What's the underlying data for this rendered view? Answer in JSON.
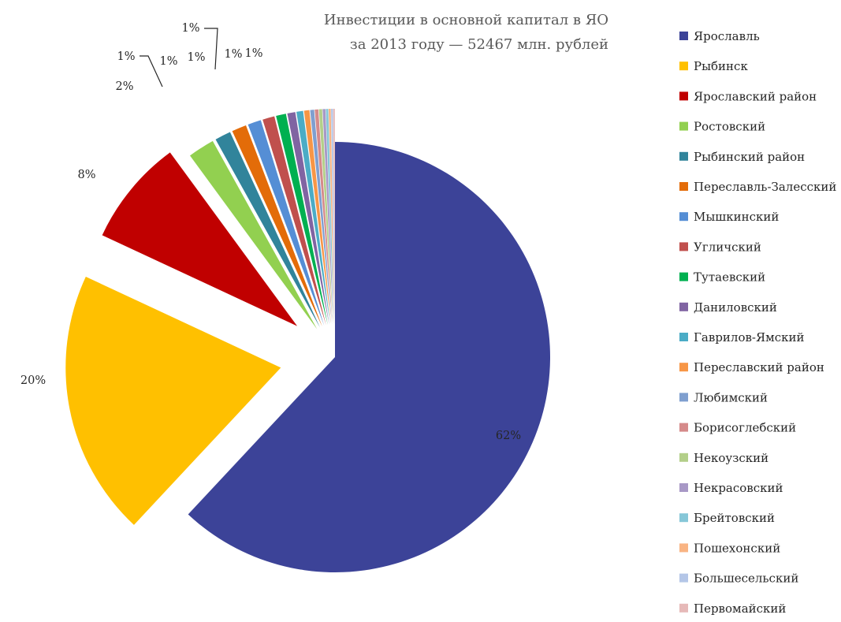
{
  "chart_data": {
    "type": "pie",
    "title": "Инвестиции в основной капитал в ЯО",
    "subtitle": "за 2013 году — 52467 млн. рублей",
    "legend_position": "right",
    "slices": [
      {
        "name": "Ярославль",
        "value": 62,
        "label": "62%",
        "color": "#3C4398"
      },
      {
        "name": "Рыбинск",
        "value": 20,
        "label": "20%",
        "color": "#FFC000"
      },
      {
        "name": "Ярославский район",
        "value": 8,
        "label": "8%",
        "color": "#C00000"
      },
      {
        "name": "Ростовский",
        "value": 2,
        "label": "2%",
        "color": "#92D050"
      },
      {
        "name": "Рыбинский район",
        "value": 1.2,
        "label": "1%",
        "color": "#31849B"
      },
      {
        "name": "Переславль-Залесский",
        "value": 1.1,
        "label": "1%",
        "color": "#E36C09"
      },
      {
        "name": "Мышкинский",
        "value": 1.0,
        "label": "1%",
        "color": "#558ED5"
      },
      {
        "name": "Угличский",
        "value": 0.9,
        "label": "1%",
        "color": "#C0504D"
      },
      {
        "name": "Тутаевский",
        "value": 0.75,
        "label": "1%",
        "color": "#00B050"
      },
      {
        "name": "Даниловский",
        "value": 0.6,
        "label": "",
        "color": "#8064A2"
      },
      {
        "name": "Гаврилов-Ямский",
        "value": 0.5,
        "label": "",
        "color": "#4BACC6"
      },
      {
        "name": "Переславский район",
        "value": 0.4,
        "label": "",
        "color": "#F79646"
      },
      {
        "name": "Любимский",
        "value": 0.3,
        "label": "",
        "color": "#7F9FCF"
      },
      {
        "name": "Борисоглебский",
        "value": 0.27,
        "label": "",
        "color": "#D58A8A"
      },
      {
        "name": "Некоузский",
        "value": 0.24,
        "label": "",
        "color": "#B3CF89"
      },
      {
        "name": "Некрасовский",
        "value": 0.21,
        "label": "",
        "color": "#A898C6"
      },
      {
        "name": "Брейтовский",
        "value": 0.18,
        "label": "",
        "color": "#86C7D8"
      },
      {
        "name": "Пошехонский",
        "value": 0.16,
        "label": "",
        "color": "#F9B483"
      },
      {
        "name": "Большесельский",
        "value": 0.14,
        "label": "",
        "color": "#B4C6E7"
      },
      {
        "name": "Первомайский",
        "value": 0.12,
        "label": "",
        "color": "#E6B9B8"
      }
    ]
  }
}
